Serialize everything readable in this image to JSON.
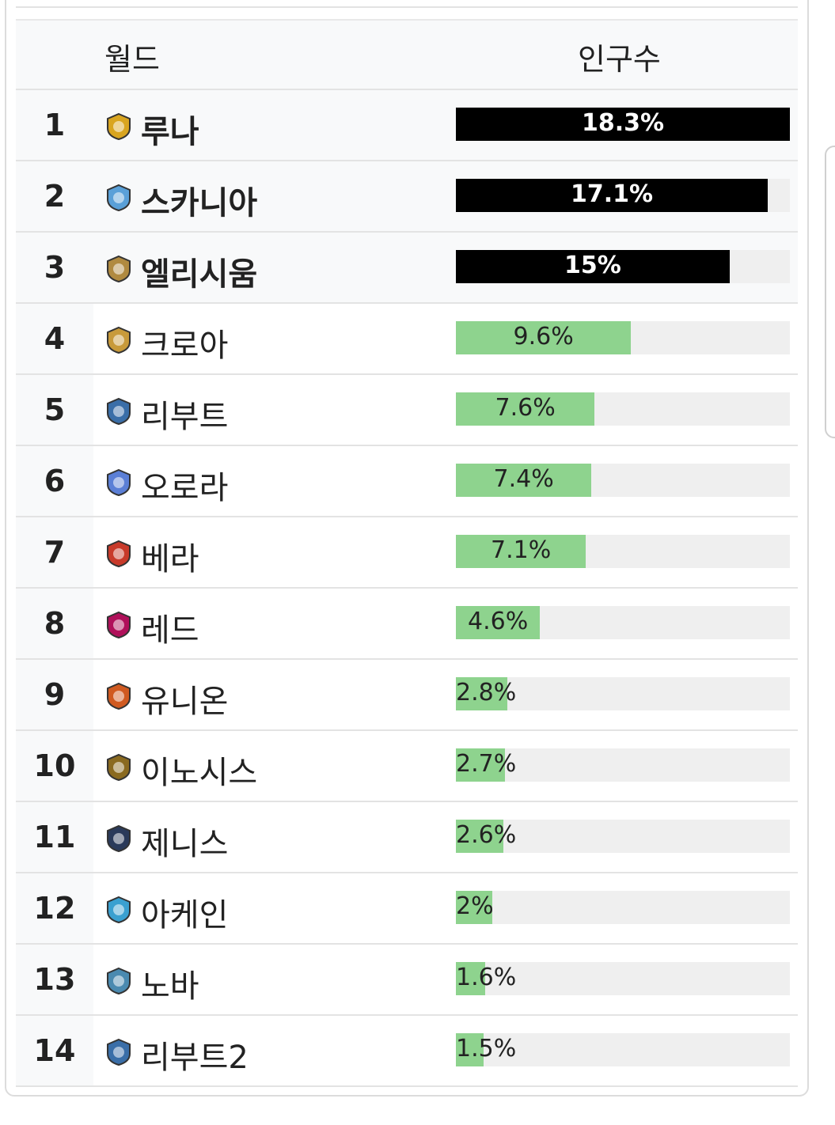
{
  "header": {
    "world_label": "월드",
    "population_label": "인구수"
  },
  "rows": [
    {
      "rank": "1",
      "name": "루나",
      "pct": 18.3,
      "label": "18.3%",
      "icon": "luna-icon",
      "color": "#d9a520"
    },
    {
      "rank": "2",
      "name": "스카니아",
      "pct": 17.1,
      "label": "17.1%",
      "icon": "scania-icon",
      "color": "#5aa0d8"
    },
    {
      "rank": "3",
      "name": "엘리시움",
      "pct": 15,
      "label": "15%",
      "icon": "elysium-icon",
      "color": "#b08a40"
    },
    {
      "rank": "4",
      "name": "크로아",
      "pct": 9.6,
      "label": "9.6%",
      "icon": "croa-icon",
      "color": "#c89a3a"
    },
    {
      "rank": "5",
      "name": "리부트",
      "pct": 7.6,
      "label": "7.6%",
      "icon": "reboot-icon",
      "color": "#3a6ea8"
    },
    {
      "rank": "6",
      "name": "오로라",
      "pct": 7.4,
      "label": "7.4%",
      "icon": "aurora-icon",
      "color": "#5b7fd6"
    },
    {
      "rank": "7",
      "name": "베라",
      "pct": 7.1,
      "label": "7.1%",
      "icon": "bera-icon",
      "color": "#c83a2a"
    },
    {
      "rank": "8",
      "name": "레드",
      "pct": 4.6,
      "label": "4.6%",
      "icon": "red-icon",
      "color": "#b0105a"
    },
    {
      "rank": "9",
      "name": "유니온",
      "pct": 2.8,
      "label": "2.8%",
      "icon": "union-icon",
      "color": "#d05a20"
    },
    {
      "rank": "10",
      "name": "이노시스",
      "pct": 2.7,
      "label": "2.7%",
      "icon": "enosis-icon",
      "color": "#8a6a20"
    },
    {
      "rank": "11",
      "name": "제니스",
      "pct": 2.6,
      "label": "2.6%",
      "icon": "zenith-icon",
      "color": "#2a3a5a"
    },
    {
      "rank": "12",
      "name": "아케인",
      "pct": 2,
      "label": "2%",
      "icon": "arcane-icon",
      "color": "#3aa0d0"
    },
    {
      "rank": "13",
      "name": "노바",
      "pct": 1.6,
      "label": "1.6%",
      "icon": "nova-icon",
      "color": "#4a8ab0"
    },
    {
      "rank": "14",
      "name": "리부트2",
      "pct": 1.5,
      "label": "1.5%",
      "icon": "reboot2-icon",
      "color": "#3a6ea8"
    }
  ],
  "bar_scale_max": 18.3
}
